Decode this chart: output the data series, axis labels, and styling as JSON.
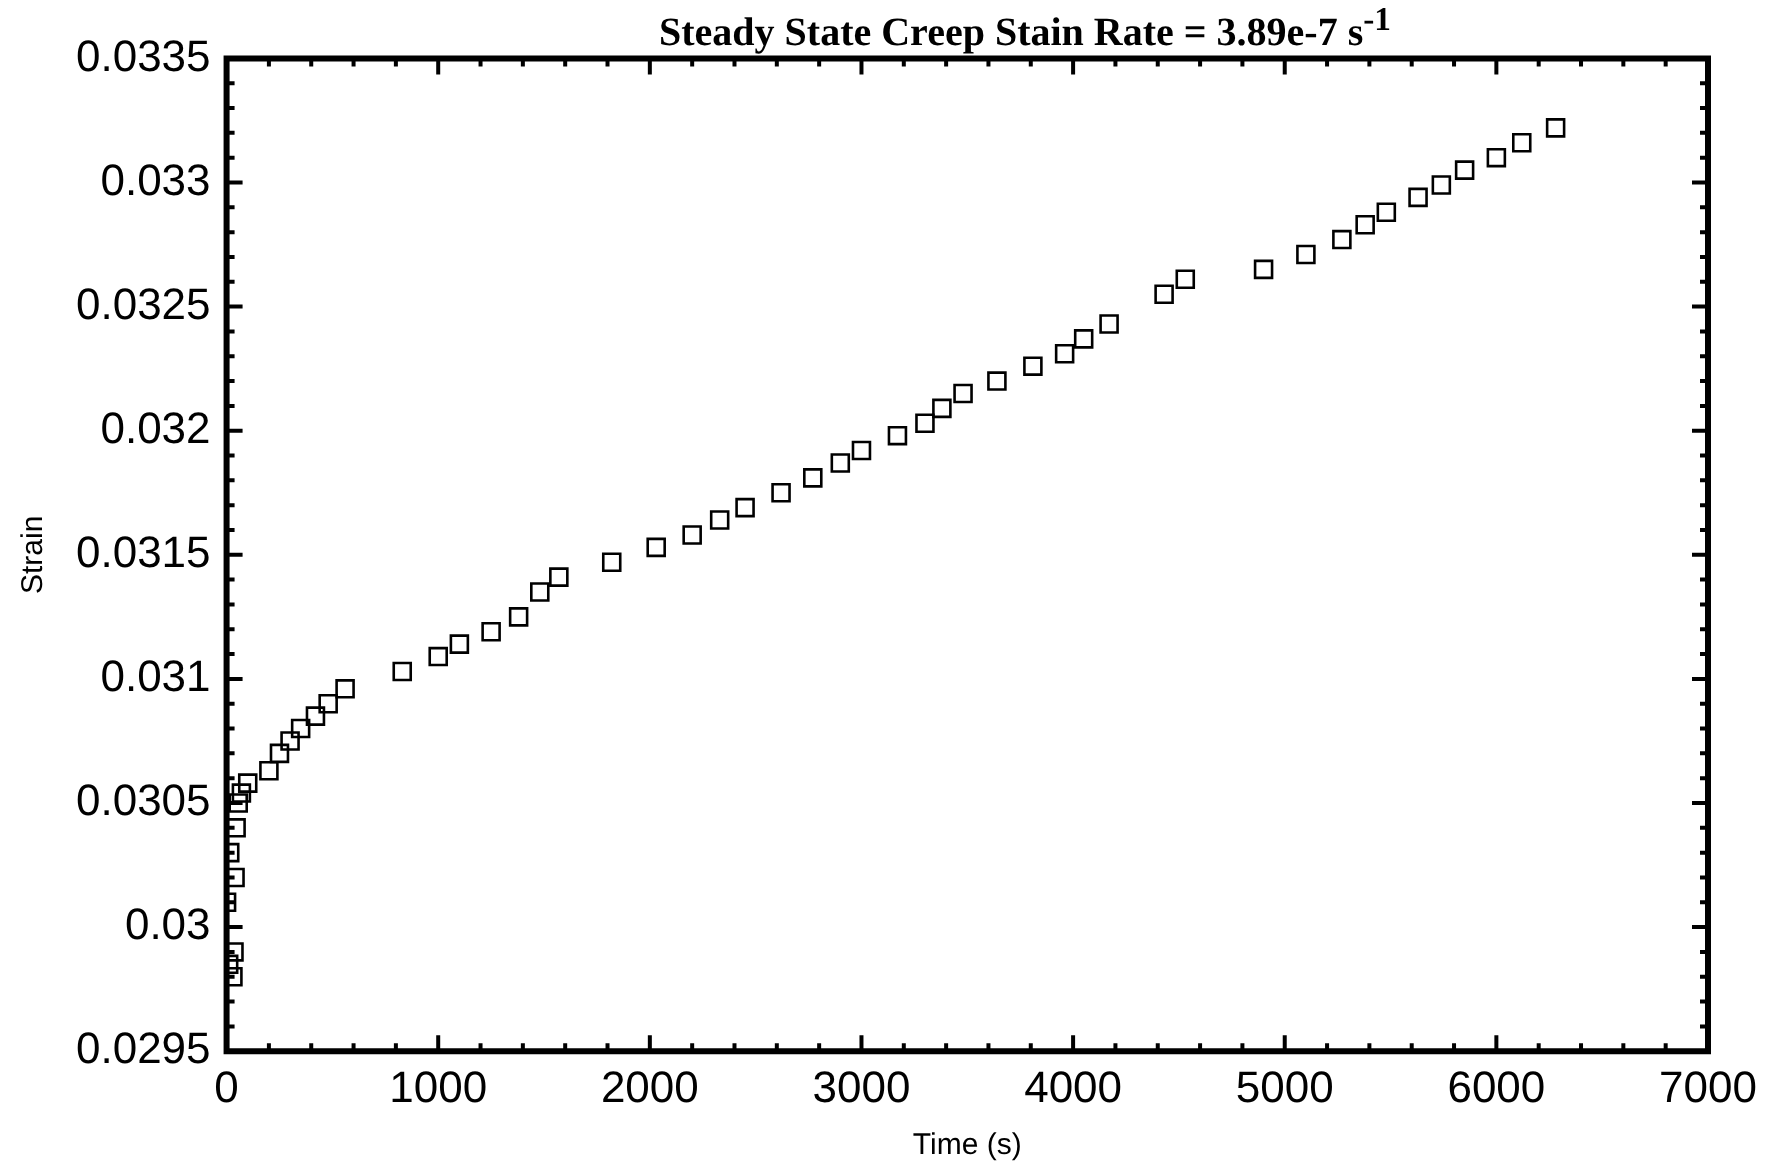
{
  "chart_data": {
    "type": "scatter",
    "title": "Steady State Creep Stain Rate = 3.89e-7 s$^{-1}$",
    "xlabel": "Time (s)",
    "ylabel": "Strain",
    "xlim": [
      0,
      7000
    ],
    "xticks": [
      0,
      1000,
      2000,
      3000,
      4000,
      5000,
      6000,
      7000
    ],
    "ylim": [
      0.0295,
      0.0335
    ],
    "yticks": [
      0.0295,
      0.03,
      0.0305,
      0.031,
      0.0315,
      0.032,
      0.0325,
      0.033,
      0.0335
    ],
    "grid": false,
    "legend": false,
    "marker": "square",
    "series": [
      {
        "color": "#000000",
        "x": [
          0,
          10,
          15,
          30,
          35,
          40,
          45,
          55,
          70,
          100,
          200,
          250,
          300,
          350,
          420,
          480,
          560,
          830,
          1000,
          1100,
          1250,
          1380,
          1480,
          1570,
          1820,
          2030,
          2200,
          2330,
          2450,
          2620,
          2770,
          2900,
          3000,
          3170,
          3300,
          3380,
          3480,
          3640,
          3810,
          3960,
          4050,
          4170,
          4430,
          4530,
          4900,
          5100,
          5270,
          5380,
          5480,
          5630,
          5740,
          5850,
          6000,
          6120,
          6280
        ],
        "values": [
          0.0301,
          0.02985,
          0.0303,
          0.0298,
          0.0299,
          0.0302,
          0.0304,
          0.0305,
          0.03054,
          0.03058,
          0.03063,
          0.0307,
          0.03075,
          0.0308,
          0.03085,
          0.0309,
          0.03096,
          0.03103,
          0.03109,
          0.03114,
          0.03119,
          0.03125,
          0.03135,
          0.03141,
          0.03147,
          0.03153,
          0.03158,
          0.03164,
          0.03169,
          0.03175,
          0.03181,
          0.03187,
          0.03192,
          0.03198,
          0.03203,
          0.03209,
          0.03215,
          0.0322,
          0.03226,
          0.03231,
          0.03237,
          0.03243,
          0.03255,
          0.03261,
          0.03265,
          0.03271,
          0.03277,
          0.03283,
          0.03288,
          0.03294,
          0.03299,
          0.03305,
          0.0331,
          0.03316,
          0.03322
        ]
      }
    ]
  }
}
